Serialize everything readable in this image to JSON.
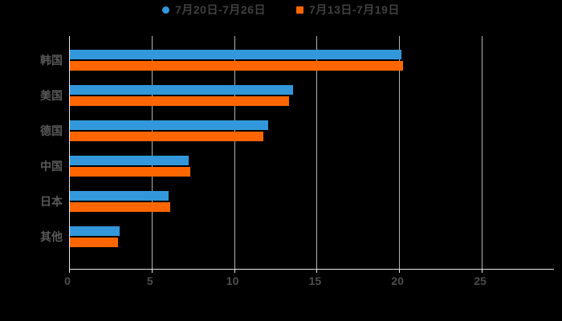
{
  "legend": {
    "items": [
      {
        "label": "7月20日-7月26日",
        "marker": "circle",
        "color": "#3398DB"
      },
      {
        "label": "7月13日-7月19日",
        "marker": "square",
        "color": "#FF6600"
      }
    ]
  },
  "chart_data": {
    "type": "bar",
    "orientation": "horizontal",
    "title": "",
    "xlabel": "",
    "ylabel": "",
    "categories": [
      "韩国",
      "美国",
      "德国",
      "中国",
      "日本",
      "其他"
    ],
    "series": [
      {
        "name": "7月20日-7月26日",
        "color": "#3398DB",
        "marker": "circle",
        "values": [
          20.1,
          13.5,
          12.0,
          7.2,
          6.0,
          3.0
        ]
      },
      {
        "name": "7月13日-7月19日",
        "color": "#FF6600",
        "marker": "square",
        "values": [
          20.2,
          13.3,
          11.7,
          7.3,
          6.1,
          2.9
        ]
      }
    ],
    "x_ticks": [
      0,
      5,
      10,
      15,
      20,
      25
    ],
    "xlim": [
      0,
      29.4
    ],
    "grid": true,
    "legend_position": "top"
  },
  "colors": {
    "background": "#000000",
    "axis": "#E6E6E6",
    "gridline": "#B3B3B3",
    "tick_label": "#4D4D4D",
    "category_label": "#595959",
    "legend_text": "#404040"
  }
}
